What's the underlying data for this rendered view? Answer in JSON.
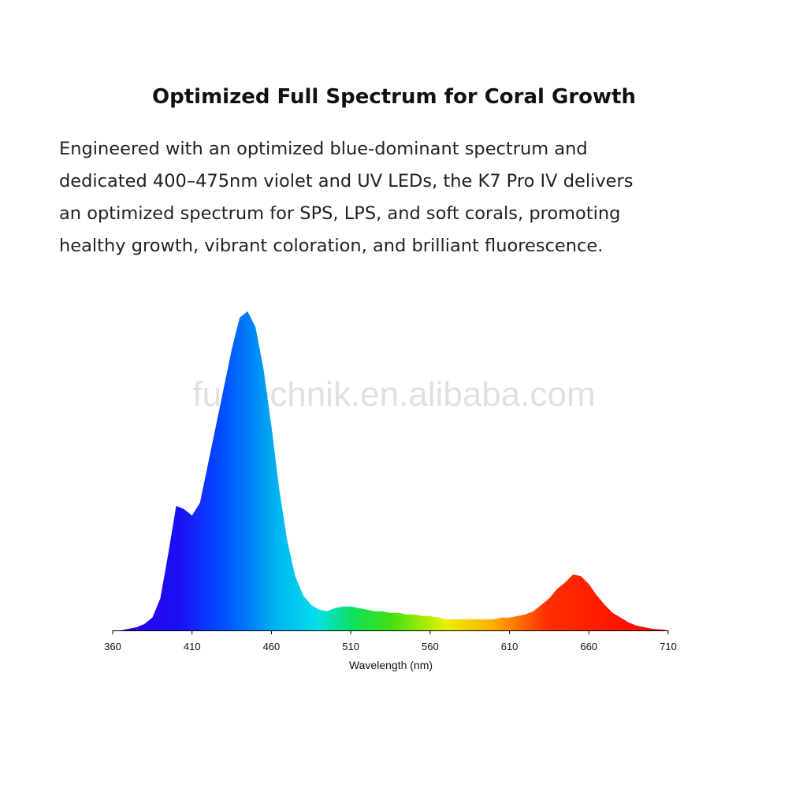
{
  "heading": "Optimized Full Spectrum for Coral Growth",
  "body_lines": [
    "Engineered with an optimized blue-dominant spectrum and",
    "dedicated 400–475nm violet and UV LEDs, the K7 Pro IV delivers",
    "an optimized spectrum for SPS, LPS, and soft corals, promoting",
    "healthy growth, vibrant coloration, and brilliant fluorescence."
  ],
  "watermark": "funtechnik.en.alibaba.com",
  "chart_data": {
    "type": "area",
    "xlabel": "Wavelength (nm)",
    "x": [
      360,
      365,
      370,
      375,
      380,
      385,
      390,
      395,
      400,
      405,
      410,
      415,
      420,
      425,
      430,
      435,
      440,
      445,
      450,
      455,
      460,
      465,
      470,
      475,
      480,
      485,
      490,
      495,
      500,
      505,
      510,
      515,
      520,
      525,
      530,
      535,
      540,
      545,
      550,
      555,
      560,
      565,
      570,
      575,
      580,
      585,
      590,
      595,
      600,
      605,
      610,
      615,
      620,
      625,
      630,
      635,
      640,
      645,
      650,
      655,
      660,
      665,
      670,
      675,
      680,
      685,
      690,
      695,
      700,
      705,
      710
    ],
    "values": [
      0,
      0,
      0.5,
      1,
      2,
      4,
      10,
      24,
      39,
      38,
      36,
      40,
      52,
      64,
      76,
      88,
      98,
      100,
      95,
      82,
      64,
      44,
      28,
      17,
      11,
      8,
      6.5,
      6,
      7,
      7.5,
      7.5,
      7,
      6.5,
      6,
      6,
      5.5,
      5.5,
      5,
      5,
      4.5,
      4.5,
      4,
      3.5,
      3.5,
      3.5,
      3.5,
      3.5,
      3.5,
      3.5,
      4,
      4,
      4.5,
      5,
      6,
      8,
      10,
      13,
      15,
      17.5,
      17,
      14.5,
      11,
      8,
      5.5,
      4,
      2.5,
      1.5,
      1,
      0.5,
      0.3,
      0
    ],
    "xlim": [
      360,
      710
    ],
    "ylim": [
      0,
      100
    ],
    "xticks": [
      360,
      410,
      460,
      510,
      560,
      610,
      660,
      710
    ]
  }
}
